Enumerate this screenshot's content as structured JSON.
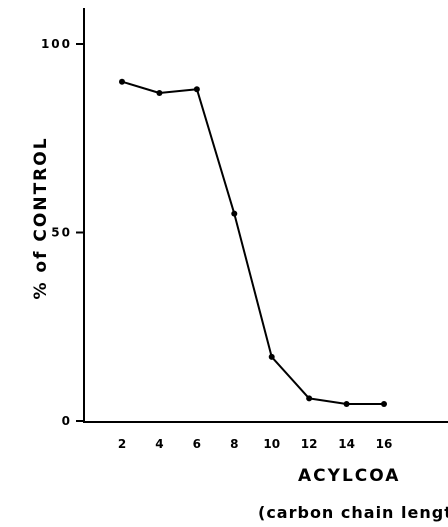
{
  "chart_data": {
    "type": "line",
    "xlabel": "ACYLCOA",
    "xlabel_sub": "(carbon chain length)",
    "ylabel": "% of CONTROL",
    "x": [
      2,
      4,
      6,
      8,
      10,
      12,
      14,
      16
    ],
    "x_ticks": [
      "2",
      "4",
      "6",
      "8",
      "10",
      "12",
      "14",
      "16"
    ],
    "y_ticks": [
      "0",
      "50",
      "100"
    ],
    "series": [
      {
        "values": [
          90,
          87,
          88,
          55,
          17,
          6,
          4.5,
          4.5
        ]
      }
    ],
    "xlim": [
      0,
      19
    ],
    "ylim": [
      0,
      110
    ],
    "grid": false,
    "colors": {
      "line": "#000000",
      "axis": "#000000"
    }
  }
}
